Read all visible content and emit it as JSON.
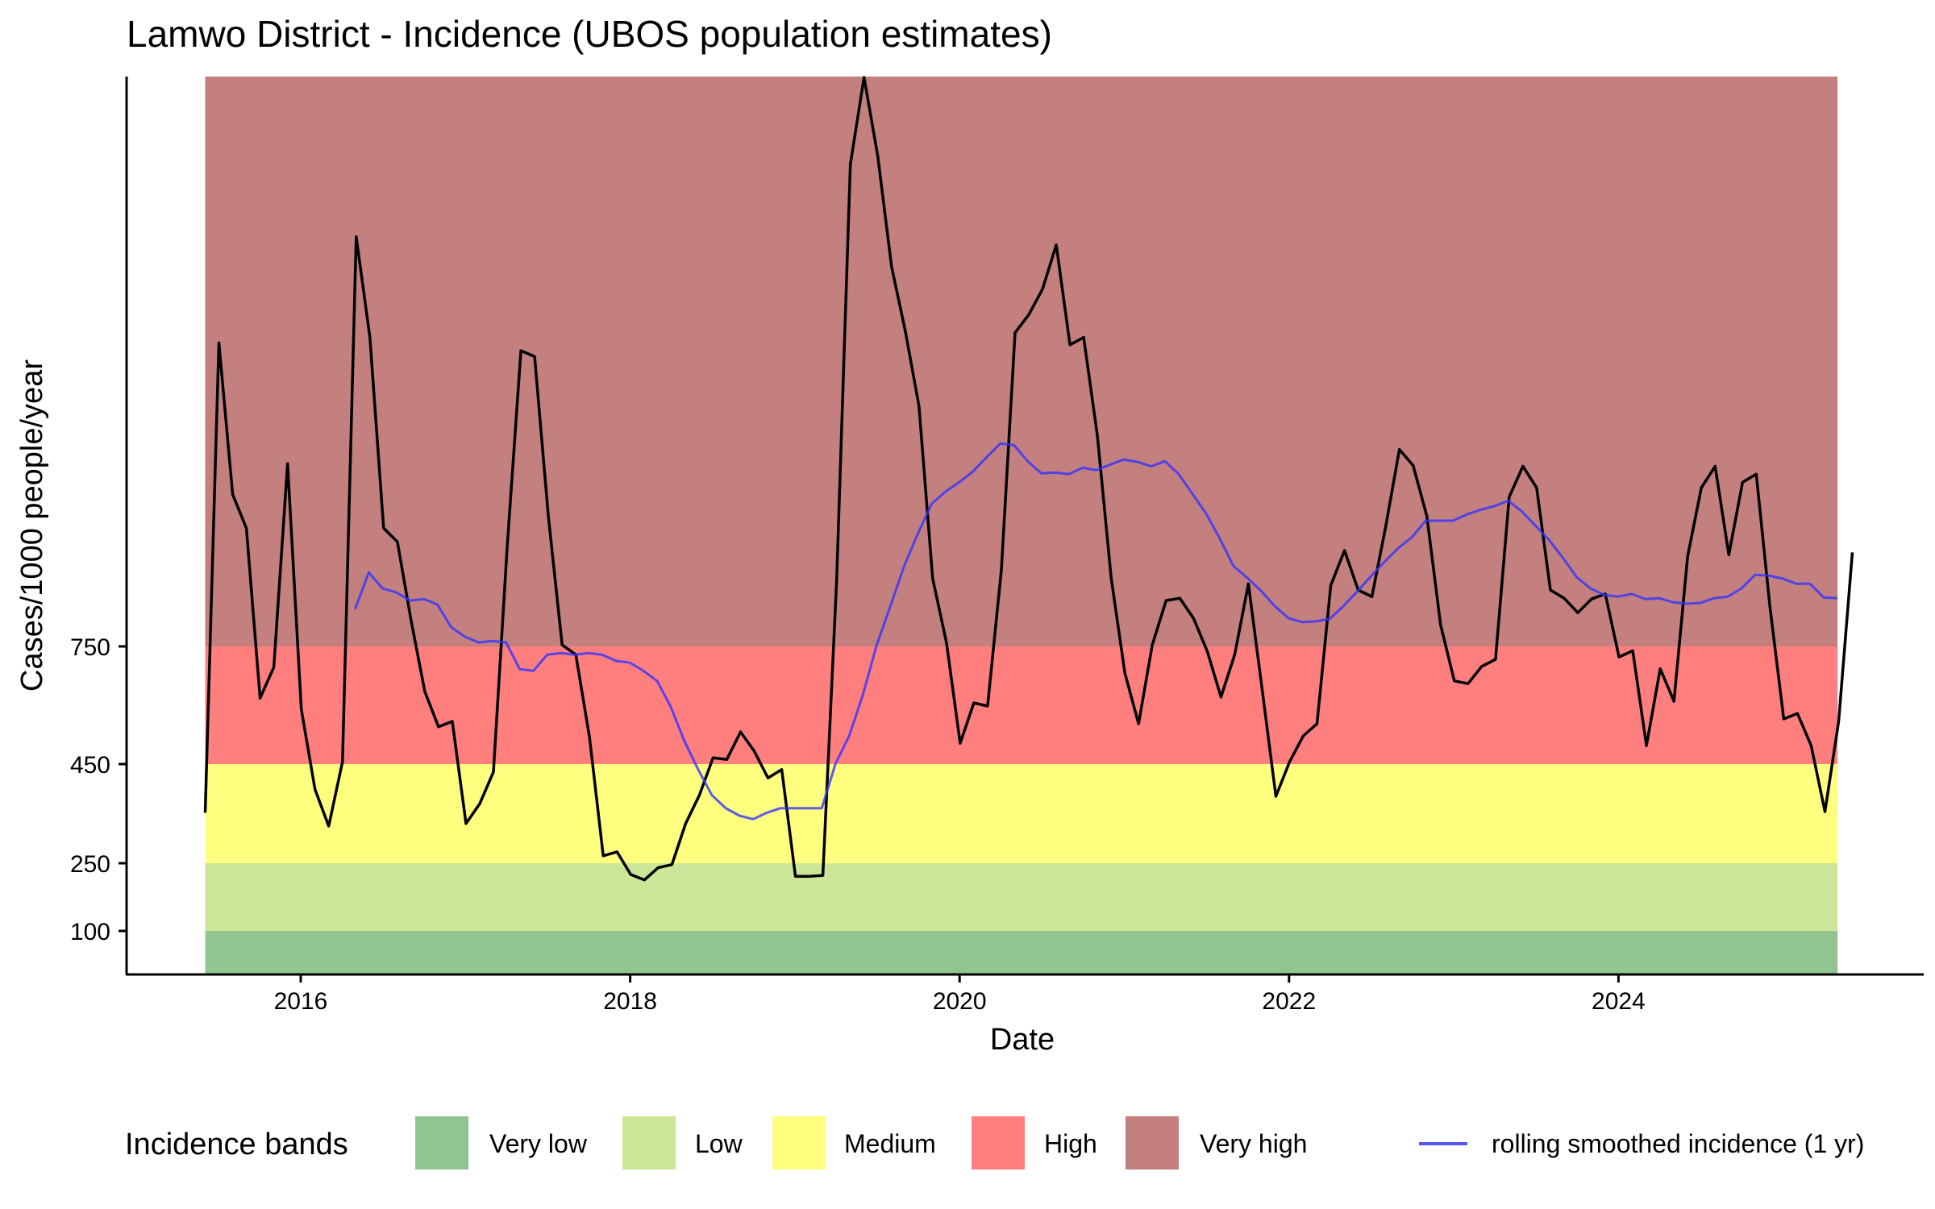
{
  "chart_data": {
    "type": "line",
    "title": "Lamwo District - Incidence (UBOS population estimates)",
    "xlabel": "Date",
    "ylabel": "Cases/1000 people/year",
    "x_ticks": [
      {
        "value": 2016,
        "label": "2016"
      },
      {
        "value": 2018,
        "label": "2018"
      },
      {
        "value": 2020,
        "label": "2020"
      },
      {
        "value": 2022,
        "label": "2022"
      },
      {
        "value": 2024,
        "label": "2024"
      }
    ],
    "y_ticks": [
      {
        "value": 100,
        "label": "100"
      },
      {
        "value": 250,
        "label": "250"
      },
      {
        "value": 450,
        "label": "450"
      },
      {
        "value": 750,
        "label": "750"
      }
    ],
    "y_scale_note": "non-linear y axis (ticks unevenly spaced)",
    "xlim": [
      2015.0,
      2025.75
    ],
    "ylim": [
      0,
      2205
    ],
    "grid": false,
    "bands": [
      {
        "name": "Very low",
        "from": 0,
        "to": 100,
        "color": "#90C590"
      },
      {
        "name": "Low",
        "from": 100,
        "to": 250,
        "color": "#CCE697"
      },
      {
        "name": "Medium",
        "from": 250,
        "to": 450,
        "color": "#FFFF7F"
      },
      {
        "name": "High",
        "from": 450,
        "to": 750,
        "color": "#FF7F7F"
      },
      {
        "name": "Very high",
        "from": 750,
        "to": 2205,
        "color": "#C47F7F"
      }
    ],
    "bands_x_range": [
      2015.42,
      2025.33
    ],
    "series": [
      {
        "name": "incidence",
        "color": "#000000",
        "x_start": 2015.42,
        "x_step_months": 1,
        "values": [
          352,
          1525,
          1138,
          1052,
          618,
          697,
          1217,
          590,
          399,
          325,
          456,
          1796,
          1539,
          1052,
          1017,
          816,
          635,
          545,
          559,
          330,
          370,
          434,
          1005,
          1505,
          1490,
          1083,
          754,
          729,
          518,
          265,
          273,
          225,
          213,
          240,
          247,
          330,
          387,
          466,
          462,
          532,
          483,
          422,
          439,
          221,
          221,
          223,
          919,
          1981,
          2203,
          2002,
          1720,
          1556,
          1364,
          923,
          760,
          503,
          606,
          598,
          945,
          1551,
          1597,
          1662,
          1775,
          1520,
          1539,
          1288,
          925,
          682,
          553,
          754,
          867,
          873,
          822,
          738,
          621,
          729,
          910,
          641,
          385,
          456,
          522,
          553,
          906,
          995,
          894,
          877,
          1056,
          1253,
          1212,
          1083,
          805,
          662,
          655,
          699,
          717,
          1132,
          1210,
          1155,
          894,
          873,
          836,
          871,
          884,
          723,
          739,
          497,
          693,
          610,
          980,
          1155,
          1210,
          984,
          1169,
          1190,
          849,
          565,
          579,
          497,
          354,
          559,
          990
        ]
      },
      {
        "name": "rolling smoothed incidence (1 yr)",
        "color": "#3333FF",
        "x_start": 2016.33,
        "x_step_months": 1,
        "values": [
          845,
          939,
          898,
          888,
          867,
          871,
          857,
          799,
          775,
          760,
          764,
          760,
          692,
          688,
          729,
          733,
          729,
          733,
          729,
          713,
          709,
          688,
          662,
          596,
          508,
          439,
          387,
          361,
          346,
          339,
          352,
          361,
          361,
          361,
          361,
          451,
          522,
          627,
          754,
          853,
          955,
          1038,
          1114,
          1145,
          1169,
          1196,
          1233,
          1268,
          1264,
          1223,
          1192,
          1194,
          1190,
          1206,
          1200,
          1214,
          1227,
          1221,
          1210,
          1223,
          1190,
          1140,
          1089,
          1025,
          955,
          925,
          892,
          853,
          822,
          812,
          814,
          820,
          853,
          890,
          929,
          966,
          1001,
          1029,
          1071,
          1071,
          1071,
          1087,
          1099,
          1108,
          1122,
          1095,
          1058,
          1021,
          976,
          927,
          898,
          882,
          877,
          884,
          871,
          873,
          863,
          859,
          861,
          873,
          877,
          898,
          933,
          931,
          923,
          910,
          910,
          875,
          873
        ]
      }
    ],
    "legend": {
      "title": "Incidence bands",
      "position": "bottom",
      "items": [
        {
          "label": "Very low",
          "color": "#90C590",
          "kind": "fill"
        },
        {
          "label": "Low",
          "color": "#CCE697",
          "kind": "fill"
        },
        {
          "label": "Medium",
          "color": "#FFFF7F",
          "kind": "fill"
        },
        {
          "label": "High",
          "color": "#FF7F7F",
          "kind": "fill"
        },
        {
          "label": "Very high",
          "color": "#C47F7F",
          "kind": "fill"
        },
        {
          "label": "rolling smoothed incidence (1 yr)",
          "color": "#5555FF",
          "kind": "line"
        }
      ]
    }
  }
}
